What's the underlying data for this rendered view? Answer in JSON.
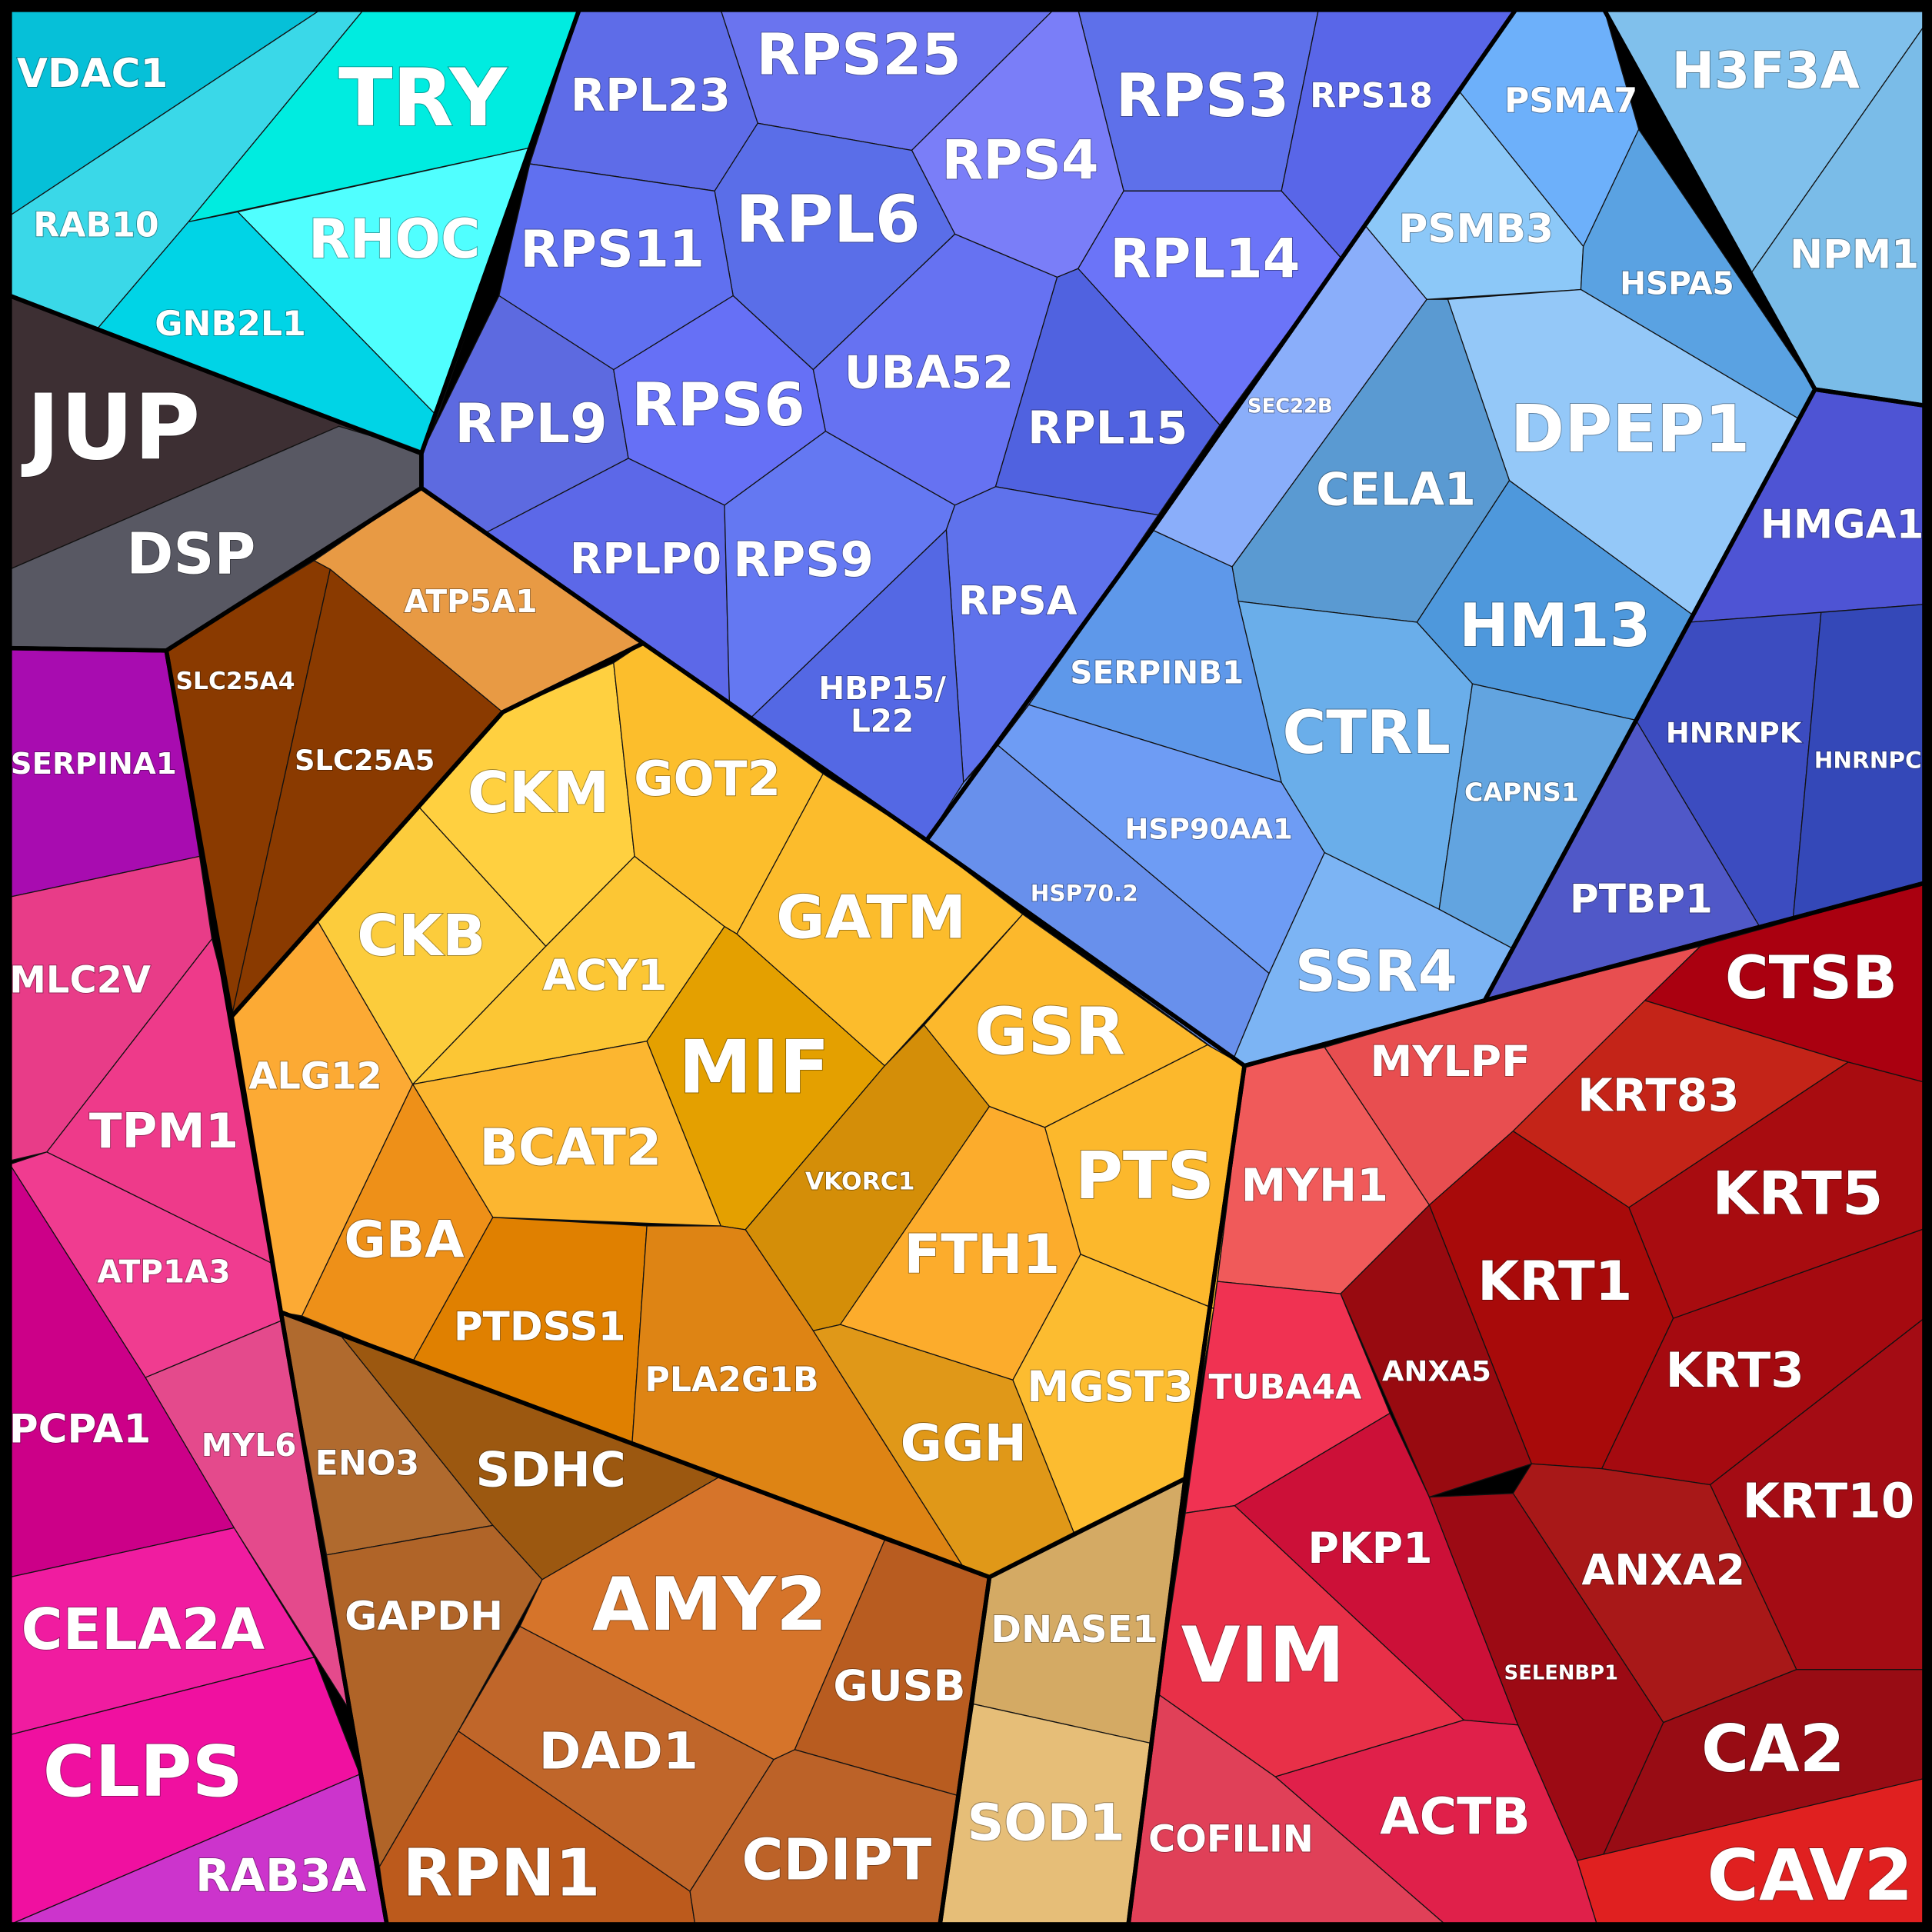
{
  "cells": [
    {
      "lines": [
        "VDAC1"
      ]
    },
    {
      "lines": [
        "RAB10"
      ]
    },
    {
      "lines": [
        "TRY"
      ]
    },
    {
      "lines": [
        "RHOC"
      ]
    },
    {
      "lines": [
        "GNB2L1"
      ]
    },
    {
      "lines": [
        "JUP"
      ]
    },
    {
      "lines": [
        "DSP"
      ]
    },
    {
      "lines": [
        "RPL23"
      ]
    },
    {
      "lines": [
        "RPS25"
      ]
    },
    {
      "lines": [
        "RPS3"
      ]
    },
    {
      "lines": [
        "RPS18"
      ]
    },
    {
      "lines": [
        "RPS4"
      ]
    },
    {
      "lines": [
        "RPL6"
      ]
    },
    {
      "lines": [
        "RPS11"
      ]
    },
    {
      "lines": [
        "RPL14"
      ]
    },
    {
      "lines": [
        "UBA52"
      ]
    },
    {
      "lines": [
        "RPL15"
      ]
    },
    {
      "lines": [
        "RPL9"
      ]
    },
    {
      "lines": [
        "RPS6"
      ]
    },
    {
      "lines": [
        "RPLP0"
      ]
    },
    {
      "lines": [
        "RPS9"
      ]
    },
    {
      "lines": [
        "RPSA"
      ]
    },
    {
      "lines": [
        "HBP15/",
        "L22"
      ]
    },
    {
      "lines": [
        "SEC22B"
      ]
    },
    {
      "lines": [
        "PSMA7"
      ]
    },
    {
      "lines": [
        "H3F3A"
      ]
    },
    {
      "lines": [
        "NPM1"
      ]
    },
    {
      "lines": [
        "PSMB3"
      ]
    },
    {
      "lines": [
        "HSPA5"
      ]
    },
    {
      "lines": [
        "DPEP1"
      ]
    },
    {
      "lines": [
        "CELA1"
      ]
    },
    {
      "lines": [
        "HM13"
      ]
    },
    {
      "lines": [
        "CTRL"
      ]
    },
    {
      "lines": [
        "SERPINB1"
      ]
    },
    {
      "lines": [
        "CAPNS1"
      ]
    },
    {
      "lines": [
        "HSP90AA1"
      ]
    },
    {
      "lines": [
        "HSP70.2"
      ]
    },
    {
      "lines": [
        "SSR4"
      ]
    },
    {
      "lines": [
        "HMGA1"
      ]
    },
    {
      "lines": [
        "HNRNPK"
      ]
    },
    {
      "lines": [
        "HNRNPC"
      ]
    },
    {
      "lines": [
        "PTBP1"
      ]
    },
    {
      "lines": [
        "MYLPF"
      ]
    },
    {
      "lines": [
        "CTSB"
      ]
    },
    {
      "lines": [
        "KRT83"
      ]
    },
    {
      "lines": [
        "KRT5"
      ]
    },
    {
      "lines": [
        "MYH1"
      ]
    },
    {
      "lines": [
        "KRT1"
      ]
    },
    {
      "lines": [
        "ANXA5"
      ]
    },
    {
      "lines": [
        "KRT3"
      ]
    },
    {
      "lines": [
        "TUBA4A"
      ]
    },
    {
      "lines": [
        "KRT10"
      ]
    },
    {
      "lines": [
        "ANXA2"
      ]
    },
    {
      "lines": [
        "PKP1"
      ]
    },
    {
      "lines": [
        "SELENBP1"
      ]
    },
    {
      "lines": [
        "VIM"
      ]
    },
    {
      "lines": [
        "CA2"
      ]
    },
    {
      "lines": [
        "ACTB"
      ]
    },
    {
      "lines": [
        "COFILIN"
      ]
    },
    {
      "lines": [
        "CAV2"
      ]
    },
    {
      "lines": [
        "SLC25A4"
      ]
    },
    {
      "lines": [
        "SLC25A5"
      ]
    },
    {
      "lines": [
        "ATP5A1"
      ]
    },
    {
      "lines": [
        "CKM"
      ]
    },
    {
      "lines": [
        "GOT2"
      ]
    },
    {
      "lines": [
        "GATM"
      ]
    },
    {
      "lines": [
        "CKB"
      ]
    },
    {
      "lines": [
        "ACY1"
      ]
    },
    {
      "lines": [
        "MIF"
      ]
    },
    {
      "lines": [
        "GSR"
      ]
    },
    {
      "lines": [
        "ALG12"
      ]
    },
    {
      "lines": [
        "BCAT2"
      ]
    },
    {
      "lines": [
        "VKORC1"
      ]
    },
    {
      "lines": [
        "PTS"
      ]
    },
    {
      "lines": [
        "GBA"
      ]
    },
    {
      "lines": [
        "FTH1"
      ]
    },
    {
      "lines": [
        "PTDSS1"
      ]
    },
    {
      "lines": [
        "PLA2G1B"
      ]
    },
    {
      "lines": [
        "MGST3"
      ]
    },
    {
      "lines": [
        "GGH"
      ]
    },
    {
      "lines": [
        "ENO3"
      ]
    },
    {
      "lines": [
        "SDHC"
      ]
    },
    {
      "lines": [
        "GAPDH"
      ]
    },
    {
      "lines": [
        "AMY2"
      ]
    },
    {
      "lines": [
        "GUSB"
      ]
    },
    {
      "lines": [
        "DAD1"
      ]
    },
    {
      "lines": [
        "RPN1"
      ]
    },
    {
      "lines": [
        "CDIPT"
      ]
    },
    {
      "lines": [
        "DNASE1"
      ]
    },
    {
      "lines": [
        "SOD1"
      ]
    },
    {
      "lines": [
        "SERPINA1"
      ]
    },
    {
      "lines": [
        "MLC2V"
      ]
    },
    {
      "lines": [
        "TPM1"
      ]
    },
    {
      "lines": [
        "ATP1A3"
      ]
    },
    {
      "lines": [
        "MYL6"
      ]
    },
    {
      "lines": [
        "PCPA1"
      ]
    },
    {
      "lines": [
        "CELA2A"
      ]
    },
    {
      "lines": [
        "CLPS"
      ]
    },
    {
      "lines": [
        "RAB3A"
      ]
    }
  ]
}
